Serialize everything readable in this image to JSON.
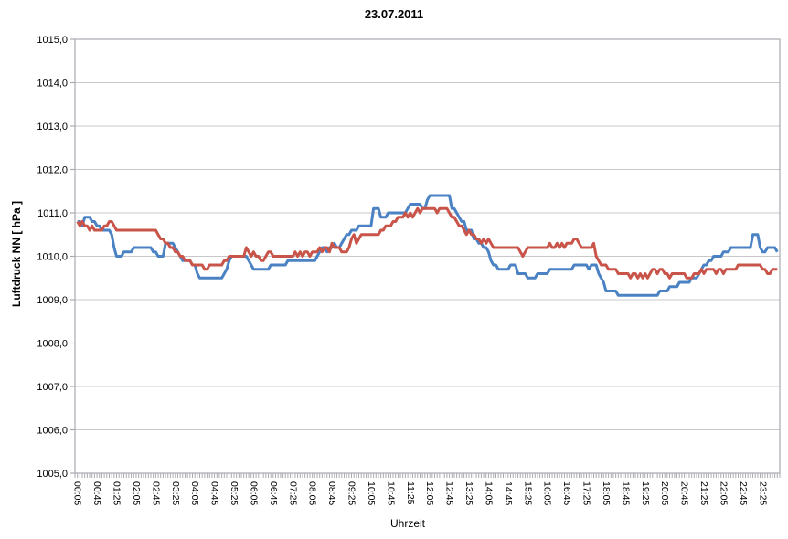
{
  "chart_data": {
    "type": "line",
    "title": "23.07.2011",
    "xlabel": "Uhrzeit",
    "ylabel": "Luftdruck NN [ hPa ]",
    "ylim": [
      1005.0,
      1015.0
    ],
    "y_tick_step": 1.0,
    "grid": "horizontal",
    "legend": "none",
    "decimal_separator": ",",
    "y_tick_labels": [
      "1015,0",
      "1014,0",
      "1013,0",
      "1012,0",
      "1011,0",
      "1010,0",
      "1009,0",
      "1008,0",
      "1007,0",
      "1006,0",
      "1005,0"
    ],
    "x_tick_labels": [
      "00:05",
      "00:45",
      "01:25",
      "02:05",
      "02:45",
      "03:25",
      "04:05",
      "04:45",
      "05:25",
      "06:05",
      "06:45",
      "07:25",
      "08:05",
      "08:45",
      "09:25",
      "10:05",
      "10:45",
      "11:25",
      "12:05",
      "12:45",
      "13:25",
      "14:05",
      "14:45",
      "15:25",
      "16:05",
      "16:45",
      "17:25",
      "18:05",
      "18:45",
      "19:25",
      "20:05",
      "20:45",
      "21:25",
      "22:05",
      "22:45",
      "23:25"
    ],
    "x_tick_start_minute": 5,
    "x_tick_interval_minutes": 40,
    "x_minor_tick_minutes": 5,
    "x_range_minutes": [
      0,
      1440
    ],
    "sample_start_minute": 5,
    "sample_interval_minutes": 5,
    "colors": {
      "series_blue": "#4a82c4",
      "series_red": "#c9544a",
      "grid": "#c8c8c8",
      "axis": "#a9a9b0",
      "text": "#000000"
    },
    "series": [
      {
        "name": "blue",
        "color": "#4a82c4",
        "values": [
          1010.8,
          1010.8,
          1010.7,
          1010.9,
          1010.9,
          1010.9,
          1010.8,
          1010.8,
          1010.7,
          1010.7,
          1010.6,
          1010.6,
          1010.6,
          1010.6,
          1010.5,
          1010.2,
          1010.0,
          1010.0,
          1010.0,
          1010.1,
          1010.1,
          1010.1,
          1010.1,
          1010.2,
          1010.2,
          1010.2,
          1010.2,
          1010.2,
          1010.2,
          1010.2,
          1010.2,
          1010.1,
          1010.1,
          1010.0,
          1010.0,
          1010.0,
          1010.3,
          1010.3,
          1010.3,
          1010.3,
          1010.2,
          1010.1,
          1010.0,
          1009.9,
          1009.9,
          1009.9,
          1009.9,
          1009.8,
          1009.8,
          1009.6,
          1009.5,
          1009.5,
          1009.5,
          1009.5,
          1009.5,
          1009.5,
          1009.5,
          1009.5,
          1009.5,
          1009.5,
          1009.6,
          1009.7,
          1009.9,
          1010.0,
          1010.0,
          1010.0,
          1010.0,
          1010.0,
          1010.0,
          1010.0,
          1009.9,
          1009.8,
          1009.7,
          1009.7,
          1009.7,
          1009.7,
          1009.7,
          1009.7,
          1009.7,
          1009.8,
          1009.8,
          1009.8,
          1009.8,
          1009.8,
          1009.8,
          1009.8,
          1009.9,
          1009.9,
          1009.9,
          1009.9,
          1009.9,
          1009.9,
          1009.9,
          1009.9,
          1009.9,
          1009.9,
          1009.9,
          1009.9,
          1010.0,
          1010.1,
          1010.2,
          1010.2,
          1010.1,
          1010.2,
          1010.2,
          1010.3,
          1010.2,
          1010.2,
          1010.3,
          1010.4,
          1010.5,
          1010.5,
          1010.6,
          1010.6,
          1010.6,
          1010.7,
          1010.7,
          1010.7,
          1010.7,
          1010.7,
          1010.7,
          1011.1,
          1011.1,
          1011.1,
          1010.9,
          1010.9,
          1010.9,
          1011.0,
          1011.0,
          1011.0,
          1011.0,
          1011.0,
          1011.0,
          1011.0,
          1011.0,
          1011.1,
          1011.2,
          1011.2,
          1011.2,
          1011.2,
          1011.2,
          1011.1,
          1011.1,
          1011.3,
          1011.4,
          1011.4,
          1011.4,
          1011.4,
          1011.4,
          1011.4,
          1011.4,
          1011.4,
          1011.4,
          1011.1,
          1011.1,
          1011.0,
          1010.9,
          1010.8,
          1010.8,
          1010.6,
          1010.6,
          1010.6,
          1010.4,
          1010.4,
          1010.3,
          1010.3,
          1010.2,
          1010.2,
          1010.1,
          1009.9,
          1009.8,
          1009.8,
          1009.7,
          1009.7,
          1009.7,
          1009.7,
          1009.7,
          1009.8,
          1009.8,
          1009.8,
          1009.6,
          1009.6,
          1009.6,
          1009.6,
          1009.5,
          1009.5,
          1009.5,
          1009.5,
          1009.6,
          1009.6,
          1009.6,
          1009.6,
          1009.6,
          1009.7,
          1009.7,
          1009.7,
          1009.7,
          1009.7,
          1009.7,
          1009.7,
          1009.7,
          1009.7,
          1009.7,
          1009.8,
          1009.8,
          1009.8,
          1009.8,
          1009.8,
          1009.8,
          1009.7,
          1009.8,
          1009.8,
          1009.8,
          1009.6,
          1009.5,
          1009.4,
          1009.2,
          1009.2,
          1009.2,
          1009.2,
          1009.2,
          1009.1,
          1009.1,
          1009.1,
          1009.1,
          1009.1,
          1009.1,
          1009.1,
          1009.1,
          1009.1,
          1009.1,
          1009.1,
          1009.1,
          1009.1,
          1009.1,
          1009.1,
          1009.1,
          1009.1,
          1009.2,
          1009.2,
          1009.2,
          1009.2,
          1009.3,
          1009.3,
          1009.3,
          1009.3,
          1009.4,
          1009.4,
          1009.4,
          1009.4,
          1009.4,
          1009.5,
          1009.5,
          1009.5,
          1009.6,
          1009.7,
          1009.8,
          1009.8,
          1009.9,
          1009.9,
          1010.0,
          1010.0,
          1010.0,
          1010.0,
          1010.1,
          1010.1,
          1010.1,
          1010.2,
          1010.2,
          1010.2,
          1010.2,
          1010.2,
          1010.2,
          1010.2,
          1010.2,
          1010.2,
          1010.5,
          1010.5,
          1010.5,
          1010.2,
          1010.1,
          1010.1,
          1010.2,
          1010.2,
          1010.2,
          1010.2,
          1010.1
        ]
      },
      {
        "name": "red",
        "color": "#c9544a",
        "values": [
          1010.8,
          1010.7,
          1010.8,
          1010.7,
          1010.7,
          1010.6,
          1010.7,
          1010.6,
          1010.6,
          1010.6,
          1010.6,
          1010.7,
          1010.7,
          1010.8,
          1010.8,
          1010.7,
          1010.6,
          1010.6,
          1010.6,
          1010.6,
          1010.6,
          1010.6,
          1010.6,
          1010.6,
          1010.6,
          1010.6,
          1010.6,
          1010.6,
          1010.6,
          1010.6,
          1010.6,
          1010.6,
          1010.6,
          1010.5,
          1010.4,
          1010.4,
          1010.3,
          1010.3,
          1010.2,
          1010.2,
          1010.1,
          1010.1,
          1010.0,
          1010.0,
          1009.9,
          1009.9,
          1009.9,
          1009.8,
          1009.8,
          1009.8,
          1009.8,
          1009.8,
          1009.7,
          1009.7,
          1009.8,
          1009.8,
          1009.8,
          1009.8,
          1009.8,
          1009.8,
          1009.9,
          1009.9,
          1010.0,
          1010.0,
          1010.0,
          1010.0,
          1010.0,
          1010.0,
          1010.0,
          1010.2,
          1010.1,
          1010.0,
          1010.1,
          1010.0,
          1010.0,
          1009.9,
          1009.9,
          1010.0,
          1010.1,
          1010.1,
          1010.0,
          1010.0,
          1010.0,
          1010.0,
          1010.0,
          1010.0,
          1010.0,
          1010.0,
          1010.0,
          1010.1,
          1010.0,
          1010.1,
          1010.0,
          1010.1,
          1010.1,
          1010.0,
          1010.1,
          1010.1,
          1010.1,
          1010.2,
          1010.1,
          1010.2,
          1010.2,
          1010.1,
          1010.3,
          1010.2,
          1010.2,
          1010.2,
          1010.1,
          1010.1,
          1010.1,
          1010.2,
          1010.4,
          1010.5,
          1010.3,
          1010.4,
          1010.5,
          1010.5,
          1010.5,
          1010.5,
          1010.5,
          1010.5,
          1010.5,
          1010.5,
          1010.6,
          1010.6,
          1010.7,
          1010.7,
          1010.7,
          1010.8,
          1010.8,
          1010.9,
          1010.9,
          1010.9,
          1011.0,
          1010.9,
          1011.0,
          1010.9,
          1011.0,
          1011.1,
          1011.0,
          1011.1,
          1011.1,
          1011.1,
          1011.1,
          1011.1,
          1011.1,
          1011.0,
          1011.1,
          1011.1,
          1011.1,
          1011.1,
          1011.0,
          1010.9,
          1010.9,
          1010.8,
          1010.7,
          1010.7,
          1010.6,
          1010.5,
          1010.6,
          1010.5,
          1010.5,
          1010.4,
          1010.4,
          1010.3,
          1010.4,
          1010.3,
          1010.4,
          1010.3,
          1010.2,
          1010.2,
          1010.2,
          1010.2,
          1010.2,
          1010.2,
          1010.2,
          1010.2,
          1010.2,
          1010.2,
          1010.2,
          1010.1,
          1010.0,
          1010.1,
          1010.2,
          1010.2,
          1010.2,
          1010.2,
          1010.2,
          1010.2,
          1010.2,
          1010.2,
          1010.2,
          1010.3,
          1010.2,
          1010.2,
          1010.3,
          1010.2,
          1010.3,
          1010.2,
          1010.3,
          1010.3,
          1010.3,
          1010.4,
          1010.4,
          1010.3,
          1010.2,
          1010.2,
          1010.2,
          1010.2,
          1010.2,
          1010.3,
          1010.0,
          1009.9,
          1009.8,
          1009.8,
          1009.8,
          1009.7,
          1009.7,
          1009.7,
          1009.7,
          1009.6,
          1009.6,
          1009.6,
          1009.6,
          1009.6,
          1009.5,
          1009.6,
          1009.6,
          1009.5,
          1009.6,
          1009.5,
          1009.6,
          1009.5,
          1009.6,
          1009.7,
          1009.7,
          1009.6,
          1009.7,
          1009.7,
          1009.6,
          1009.6,
          1009.5,
          1009.6,
          1009.6,
          1009.6,
          1009.6,
          1009.6,
          1009.6,
          1009.5,
          1009.5,
          1009.5,
          1009.6,
          1009.6,
          1009.6,
          1009.7,
          1009.6,
          1009.7,
          1009.7,
          1009.7,
          1009.7,
          1009.6,
          1009.7,
          1009.7,
          1009.6,
          1009.7,
          1009.7,
          1009.7,
          1009.7,
          1009.7,
          1009.8,
          1009.8,
          1009.8,
          1009.8,
          1009.8,
          1009.8,
          1009.8,
          1009.8,
          1009.8,
          1009.8,
          1009.7,
          1009.7,
          1009.6,
          1009.6,
          1009.7,
          1009.7,
          1009.7
        ]
      }
    ]
  }
}
